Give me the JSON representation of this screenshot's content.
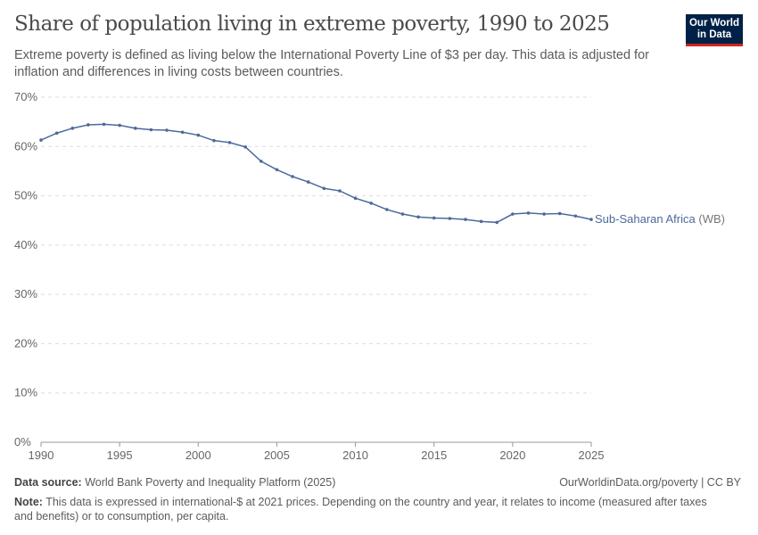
{
  "header": {
    "title": "Share of population living in extreme poverty, 1990 to 2025",
    "subtitle": "Extreme poverty is defined as living below the International Poverty Line of $3 per day. This data is adjusted for inflation and differences in living costs between countries.",
    "logo": "Our World in Data"
  },
  "chart_data": {
    "type": "line",
    "title": "Share of population living in extreme poverty, 1990 to 2025",
    "xlim": [
      1990,
      2025
    ],
    "ylim": [
      0,
      70
    ],
    "x_ticks": [
      "1990",
      "1995",
      "2000",
      "2005",
      "2010",
      "2015",
      "2020",
      "2025"
    ],
    "y_ticks": [
      "0%",
      "10%",
      "20%",
      "30%",
      "40%",
      "50%",
      "60%",
      "70%"
    ],
    "grid": "horizontal dashed",
    "series": [
      {
        "name": "Sub-Saharan Africa",
        "suffix": "(WB)",
        "color": "#4c6a9c",
        "x": [
          1990,
          1991,
          1992,
          1993,
          1994,
          1995,
          1996,
          1997,
          1998,
          1999,
          2000,
          2001,
          2002,
          2003,
          2004,
          2005,
          2006,
          2007,
          2008,
          2009,
          2010,
          2011,
          2012,
          2013,
          2014,
          2015,
          2016,
          2017,
          2018,
          2019,
          2020,
          2021,
          2022,
          2023,
          2024,
          2025
        ],
        "values": [
          61.3,
          62.7,
          63.7,
          64.4,
          64.5,
          64.3,
          63.7,
          63.4,
          63.3,
          62.9,
          62.3,
          61.2,
          60.8,
          59.9,
          57.0,
          55.3,
          53.9,
          52.8,
          51.5,
          51.0,
          49.5,
          48.5,
          47.2,
          46.3,
          45.7,
          45.5,
          45.4,
          45.2,
          44.8,
          44.6,
          46.3,
          46.5,
          46.3,
          46.4,
          45.9,
          45.2
        ]
      }
    ]
  },
  "footer": {
    "source_label": "Data source:",
    "source": "World Bank Poverty and Inequality Platform (2025)",
    "url": "OurWorldinData.org/poverty | CC BY",
    "note_label": "Note:",
    "note": "This data is expressed in international-$ at 2021 prices. Depending on the country and year, it relates to income (measured after taxes and benefits) or to consumption, per capita."
  }
}
